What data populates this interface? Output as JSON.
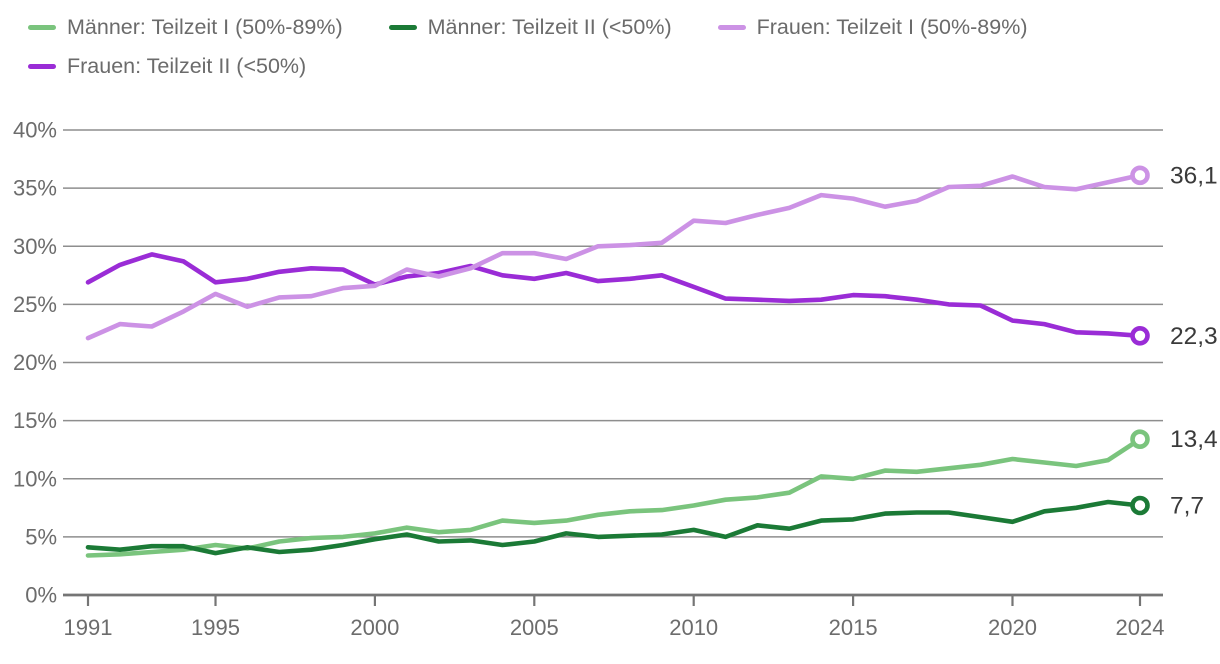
{
  "chart_data": {
    "type": "line",
    "x": [
      1991,
      1992,
      1993,
      1994,
      1995,
      1996,
      1997,
      1998,
      1999,
      2000,
      2001,
      2002,
      2003,
      2004,
      2005,
      2006,
      2007,
      2008,
      2009,
      2010,
      2011,
      2012,
      2013,
      2014,
      2015,
      2016,
      2017,
      2018,
      2019,
      2020,
      2021,
      2022,
      2023,
      2024
    ],
    "x_ticks": [
      1991,
      1995,
      2000,
      2005,
      2010,
      2015,
      2020,
      2024
    ],
    "y_ticks": [
      0,
      5,
      10,
      15,
      20,
      25,
      30,
      35,
      40
    ],
    "y_tick_suffix": "%",
    "xlim": [
      1991,
      2024
    ],
    "ylim": [
      0,
      40
    ],
    "grid": true,
    "legend_position": "top",
    "series": [
      {
        "key": "maenner-teilzeit-1",
        "name": "Männer: Teilzeit I (50%-89%)",
        "color": "#7ac47d",
        "end_label": "13,4",
        "values": [
          3.4,
          3.5,
          3.7,
          3.9,
          4.3,
          4.0,
          4.6,
          4.9,
          5.0,
          5.3,
          5.8,
          5.4,
          5.6,
          6.4,
          6.2,
          6.4,
          6.9,
          7.2,
          7.3,
          7.7,
          8.2,
          8.4,
          8.8,
          10.2,
          10.0,
          10.7,
          10.6,
          10.9,
          11.2,
          11.7,
          11.4,
          11.1,
          11.6,
          13.4
        ]
      },
      {
        "key": "maenner-teilzeit-2",
        "name": "Männer: Teilzeit II (<50%)",
        "color": "#1b7a36",
        "end_label": "7,7",
        "values": [
          4.1,
          3.9,
          4.2,
          4.2,
          3.6,
          4.1,
          3.7,
          3.9,
          4.3,
          4.8,
          5.2,
          4.6,
          4.7,
          4.3,
          4.6,
          5.3,
          5.0,
          5.1,
          5.2,
          5.6,
          5.0,
          6.0,
          5.7,
          6.4,
          6.5,
          7.0,
          7.1,
          7.1,
          6.7,
          6.3,
          7.2,
          7.5,
          8.0,
          7.7
        ]
      },
      {
        "key": "frauen-teilzeit-1",
        "name": "Frauen: Teilzeit I (50%-89%)",
        "color": "#cc92e5",
        "end_label": "36,1",
        "values": [
          22.1,
          23.3,
          23.1,
          24.4,
          25.9,
          24.8,
          25.6,
          25.7,
          26.4,
          26.6,
          28.0,
          27.4,
          28.1,
          29.4,
          29.4,
          28.9,
          30.0,
          30.1,
          30.3,
          32.2,
          32.0,
          32.7,
          33.3,
          34.4,
          34.1,
          33.4,
          33.9,
          35.1,
          35.2,
          36.0,
          35.1,
          34.9,
          35.5,
          36.1
        ]
      },
      {
        "key": "frauen-teilzeit-2",
        "name": "Frauen: Teilzeit II (<50%)",
        "color": "#9a2cd6",
        "end_label": "22,3",
        "values": [
          26.9,
          28.4,
          29.3,
          28.7,
          26.9,
          27.2,
          27.8,
          28.1,
          28.0,
          26.7,
          27.4,
          27.7,
          28.3,
          27.5,
          27.2,
          27.7,
          27.0,
          27.2,
          27.5,
          26.5,
          25.5,
          25.4,
          25.3,
          25.4,
          25.8,
          25.7,
          25.4,
          25.0,
          24.9,
          23.6,
          23.3,
          22.6,
          22.5,
          22.3
        ]
      }
    ],
    "styles": {
      "grid_color": "#8e8e8e",
      "axis_color": "#757575",
      "tick_label_color": "#6c6c6c",
      "end_label_color": "#3a3a3a"
    }
  }
}
